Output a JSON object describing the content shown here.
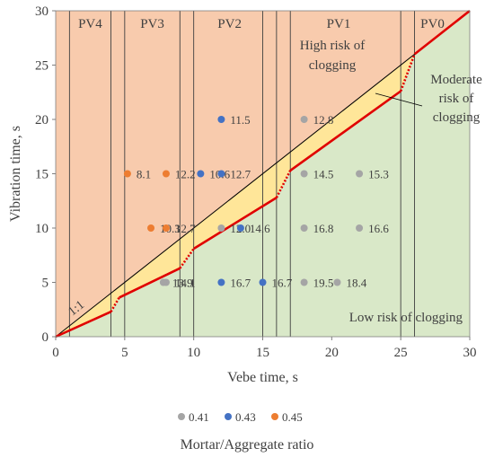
{
  "chart_data": {
    "type": "scatter",
    "xlabel": "Vebe time, s",
    "ylabel": "Vibration time, s",
    "xlim": [
      0,
      30
    ],
    "ylim": [
      0,
      30
    ],
    "xticks": [
      "0",
      "5",
      "10",
      "15",
      "20",
      "25",
      "30"
    ],
    "yticks": [
      "0",
      "5",
      "10",
      "15",
      "20",
      "25",
      "30"
    ],
    "grid": false,
    "legend_title": "Mortar/Aggregate ratio",
    "legend_position": "bottom",
    "colors": {
      "high_risk": "#f8cbad",
      "low_risk": "#d9e8c8",
      "moderate_risk": "#ffe699",
      "boundary": "#e00000",
      "line_1to1": "#000000"
    },
    "zones": [
      {
        "label": "PV4",
        "x_from": 1,
        "x_to": 5,
        "label_x": 2.5
      },
      {
        "label": "PV3",
        "x_from": 5,
        "x_to": 9,
        "label_x": 7
      },
      {
        "label": "PV2",
        "x_from": 10,
        "x_to": 15,
        "label_x": 12.6
      },
      {
        "label": "PV1",
        "x_from": 17,
        "x_to": 25,
        "label_x": 20.5
      },
      {
        "label": "PV0",
        "x_from": 26,
        "x_to": 30,
        "label_x": 27.3
      }
    ],
    "zone_lines": [
      1,
      4,
      5,
      9,
      10,
      15,
      16,
      17,
      25,
      26
    ],
    "boundary_solid": [
      [
        [
          0,
          0
        ],
        [
          4,
          2.3
        ]
      ],
      [
        [
          4.6,
          3.6
        ],
        [
          9,
          6.3
        ]
      ],
      [
        [
          10,
          8.1
        ],
        [
          16,
          12.8
        ]
      ],
      [
        [
          17,
          15.3
        ],
        [
          25,
          22.6
        ]
      ],
      [
        [
          26,
          26
        ],
        [
          30,
          30
        ]
      ]
    ],
    "boundary_dotted": [
      [
        [
          4,
          2.3
        ],
        [
          4.6,
          3.6
        ]
      ],
      [
        [
          9,
          6.3
        ],
        [
          10,
          8.1
        ]
      ],
      [
        [
          16,
          12.8
        ],
        [
          17,
          15.3
        ]
      ],
      [
        [
          25,
          22.6
        ],
        [
          26,
          26
        ]
      ]
    ],
    "region_labels": {
      "high": [
        "High risk of",
        "clogging"
      ],
      "moderate": [
        "Moderate",
        "risk of",
        "clogging"
      ],
      "low": "Low risk of clogging",
      "line_1to1": "1:1"
    },
    "series": [
      {
        "name": "0.41",
        "color": "#a5a5a5",
        "points": [
          {
            "x": 18,
            "y": 20,
            "label": "12.8"
          },
          {
            "x": 18,
            "y": 15,
            "label": "14.5"
          },
          {
            "x": 22,
            "y": 15,
            "label": "15.3"
          },
          {
            "x": 18,
            "y": 10,
            "label": "16.8"
          },
          {
            "x": 22,
            "y": 10,
            "label": "16.6"
          },
          {
            "x": 18,
            "y": 5,
            "label": "19.5"
          },
          {
            "x": 20.4,
            "y": 5,
            "label": "18.4"
          },
          {
            "x": 8,
            "y": 5,
            "label": "14.1"
          },
          {
            "x": 7.8,
            "y": 5,
            "label": "13.9"
          },
          {
            "x": 12,
            "y": 10,
            "label": "12.0"
          }
        ]
      },
      {
        "name": "0.43",
        "color": "#4472c4",
        "points": [
          {
            "x": 12,
            "y": 20,
            "label": "11.5"
          },
          {
            "x": 10.5,
            "y": 15,
            "label": "10.6"
          },
          {
            "x": 12,
            "y": 15,
            "label": "12.7"
          },
          {
            "x": 13.4,
            "y": 10,
            "label": "14.6"
          },
          {
            "x": 12,
            "y": 5,
            "label": "16.7"
          },
          {
            "x": 15,
            "y": 5,
            "label": "16.7"
          }
        ]
      },
      {
        "name": "0.45",
        "color": "#ed7d31",
        "points": [
          {
            "x": 5.2,
            "y": 15,
            "label": "8.1"
          },
          {
            "x": 8,
            "y": 15,
            "label": "12.2"
          },
          {
            "x": 6.9,
            "y": 10,
            "label": "10.3"
          },
          {
            "x": 8,
            "y": 10,
            "label": "12.7"
          }
        ]
      }
    ]
  }
}
